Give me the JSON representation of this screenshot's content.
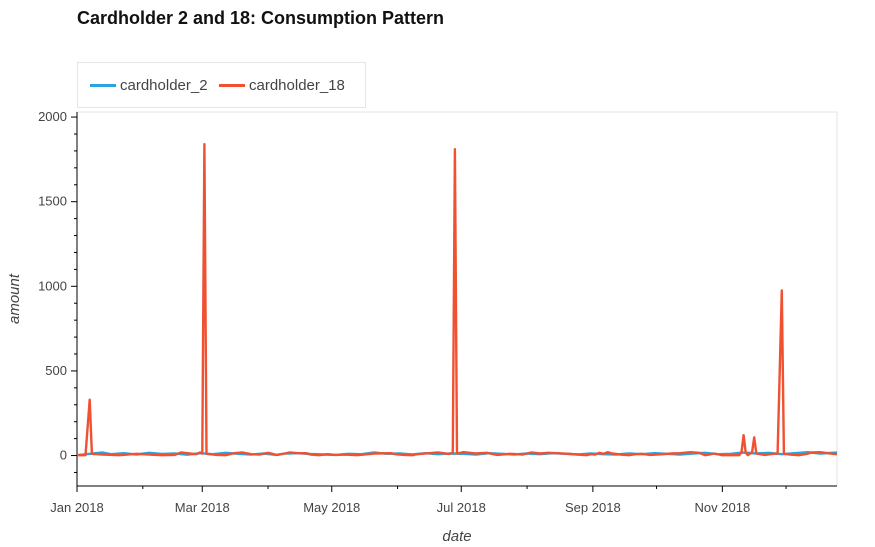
{
  "chart_data": {
    "type": "line",
    "title": "Cardholder 2 and 18: Consumption Pattern",
    "xlabel": "date",
    "ylabel": "amount",
    "ylim": [
      -180,
      2030
    ],
    "xlim": [
      0,
      358
    ],
    "y_ticks": [
      0,
      500,
      1000,
      1500,
      2000
    ],
    "x_ticks": [
      {
        "label": "Jan 2018",
        "day": 0
      },
      {
        "label": "Mar 2018",
        "day": 59
      },
      {
        "label": "May 2018",
        "day": 120
      },
      {
        "label": "Jul 2018",
        "day": 181
      },
      {
        "label": "Sep 2018",
        "day": 243
      },
      {
        "label": "Nov 2018",
        "day": 304
      }
    ],
    "series": [
      {
        "name": "cardholder_2",
        "color": "#2aa3df",
        "points": [
          [
            0,
            2
          ],
          [
            6,
            10
          ],
          [
            12,
            18
          ],
          [
            16,
            8
          ],
          [
            22,
            14
          ],
          [
            28,
            6
          ],
          [
            34,
            16
          ],
          [
            40,
            9
          ],
          [
            46,
            12
          ],
          [
            52,
            5
          ],
          [
            58,
            14
          ],
          [
            64,
            8
          ],
          [
            70,
            16
          ],
          [
            76,
            10
          ],
          [
            82,
            6
          ],
          [
            88,
            12
          ],
          [
            94,
            4
          ],
          [
            98,
            12
          ],
          [
            104,
            14
          ],
          [
            110,
            9
          ],
          [
            116,
            6
          ],
          [
            122,
            4
          ],
          [
            128,
            10
          ],
          [
            134,
            8
          ],
          [
            140,
            18
          ],
          [
            146,
            10
          ],
          [
            152,
            12
          ],
          [
            158,
            6
          ],
          [
            164,
            14
          ],
          [
            170,
            8
          ],
          [
            176,
            12
          ],
          [
            182,
            10
          ],
          [
            188,
            6
          ],
          [
            194,
            14
          ],
          [
            200,
            10
          ],
          [
            206,
            6
          ],
          [
            212,
            12
          ],
          [
            218,
            8
          ],
          [
            224,
            14
          ],
          [
            230,
            10
          ],
          [
            236,
            6
          ],
          [
            242,
            12
          ],
          [
            248,
            8
          ],
          [
            254,
            6
          ],
          [
            260,
            12
          ],
          [
            266,
            8
          ],
          [
            272,
            14
          ],
          [
            278,
            10
          ],
          [
            284,
            6
          ],
          [
            290,
            12
          ],
          [
            296,
            16
          ],
          [
            302,
            8
          ],
          [
            308,
            10
          ],
          [
            314,
            18
          ],
          [
            320,
            12
          ],
          [
            326,
            16
          ],
          [
            332,
            8
          ],
          [
            338,
            14
          ],
          [
            344,
            20
          ],
          [
            350,
            12
          ],
          [
            356,
            16
          ],
          [
            358,
            18
          ]
        ]
      },
      {
        "name": "cardholder_18",
        "color": "#ef5131",
        "points": [
          [
            0,
            2
          ],
          [
            4,
            2
          ],
          [
            6,
            330
          ],
          [
            7,
            10
          ],
          [
            12,
            6
          ],
          [
            20,
            2
          ],
          [
            28,
            10
          ],
          [
            34,
            6
          ],
          [
            40,
            2
          ],
          [
            46,
            4
          ],
          [
            49,
            18
          ],
          [
            56,
            8
          ],
          [
            58,
            18
          ],
          [
            59,
            12
          ],
          [
            60,
            1840
          ],
          [
            61,
            10
          ],
          [
            66,
            4
          ],
          [
            70,
            2
          ],
          [
            74,
            14
          ],
          [
            78,
            18
          ],
          [
            82,
            8
          ],
          [
            86,
            6
          ],
          [
            90,
            16
          ],
          [
            94,
            4
          ],
          [
            98,
            12
          ],
          [
            100,
            18
          ],
          [
            104,
            14
          ],
          [
            108,
            14
          ],
          [
            110,
            6
          ],
          [
            114,
            2
          ],
          [
            118,
            8
          ],
          [
            122,
            4
          ],
          [
            126,
            6
          ],
          [
            132,
            2
          ],
          [
            140,
            12
          ],
          [
            148,
            14
          ],
          [
            150,
            8
          ],
          [
            154,
            4
          ],
          [
            158,
            2
          ],
          [
            160,
            8
          ],
          [
            166,
            14
          ],
          [
            170,
            18
          ],
          [
            175,
            10
          ],
          [
            177,
            15
          ],
          [
            178,
            1810
          ],
          [
            179,
            12
          ],
          [
            182,
            20
          ],
          [
            188,
            12
          ],
          [
            193,
            16
          ],
          [
            198,
            4
          ],
          [
            204,
            10
          ],
          [
            210,
            6
          ],
          [
            214,
            18
          ],
          [
            218,
            12
          ],
          [
            222,
            16
          ],
          [
            226,
            14
          ],
          [
            232,
            10
          ],
          [
            234,
            8
          ],
          [
            236,
            6
          ],
          [
            238,
            4
          ],
          [
            240,
            2
          ],
          [
            242,
            8
          ],
          [
            244,
            6
          ],
          [
            246,
            16
          ],
          [
            248,
            10
          ],
          [
            250,
            20
          ],
          [
            252,
            12
          ],
          [
            256,
            6
          ],
          [
            260,
            2
          ],
          [
            263,
            8
          ],
          [
            266,
            10
          ],
          [
            270,
            4
          ],
          [
            276,
            8
          ],
          [
            280,
            12
          ],
          [
            284,
            14
          ],
          [
            289,
            20
          ],
          [
            293,
            16
          ],
          [
            296,
            2
          ],
          [
            298,
            6
          ],
          [
            300,
            12
          ],
          [
            304,
            2
          ],
          [
            312,
            2
          ],
          [
            313,
            20
          ],
          [
            314,
            120
          ],
          [
            315,
            18
          ],
          [
            316,
            2
          ],
          [
            318,
            20
          ],
          [
            319,
            108
          ],
          [
            320,
            12
          ],
          [
            324,
            4
          ],
          [
            328,
            10
          ],
          [
            330,
            12
          ],
          [
            332,
            975
          ],
          [
            333,
            10
          ],
          [
            336,
            6
          ],
          [
            340,
            2
          ],
          [
            344,
            10
          ],
          [
            346,
            18
          ],
          [
            350,
            20
          ],
          [
            356,
            10
          ],
          [
            358,
            8
          ]
        ]
      }
    ]
  },
  "legend": {
    "items": [
      {
        "label": "cardholder_2",
        "color": "#2aa3df"
      },
      {
        "label": "cardholder_18",
        "color": "#ef5131"
      }
    ]
  }
}
